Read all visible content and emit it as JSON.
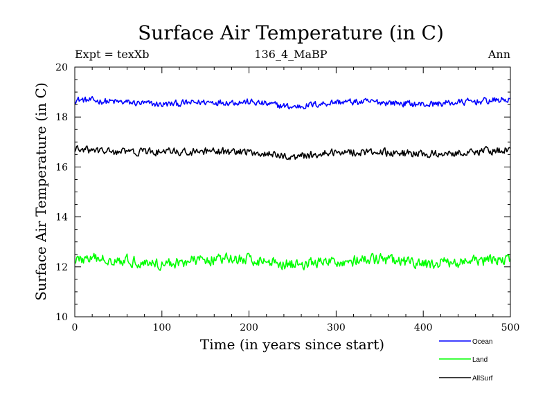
{
  "chart_data": {
    "type": "line",
    "title": "Surface Air Temperature (in C)",
    "subtitle_left": "Expt = texXb",
    "subtitle_center": "136_4_MaBP",
    "subtitle_right": "Ann",
    "xlabel": "Time (in years since start)",
    "ylabel": "Surface Air Temperature (in C)",
    "xlim": [
      0,
      500
    ],
    "ylim": [
      10,
      20
    ],
    "xticks": [
      0,
      100,
      200,
      300,
      400,
      500
    ],
    "yticks": [
      10,
      12,
      14,
      16,
      18,
      20
    ],
    "grid": false,
    "legend_position": "bottom-right",
    "series": [
      {
        "name": "Ocean",
        "color": "#0000ff",
        "mean": 18.6,
        "noise": 0.12,
        "sample_years": [
          0,
          50,
          100,
          150,
          200,
          250,
          300,
          350,
          400,
          450,
          500
        ],
        "values": [
          18.7,
          18.6,
          18.5,
          18.6,
          18.6,
          18.4,
          18.6,
          18.6,
          18.5,
          18.6,
          18.7
        ]
      },
      {
        "name": "Land",
        "color": "#00ff00",
        "mean": 12.2,
        "noise": 0.2,
        "sample_years": [
          0,
          50,
          100,
          150,
          200,
          250,
          300,
          350,
          400,
          450,
          500
        ],
        "values": [
          12.3,
          12.3,
          12.1,
          12.3,
          12.3,
          12.1,
          12.2,
          12.3,
          12.1,
          12.2,
          12.3
        ]
      },
      {
        "name": "AllSurf",
        "color": "#000000",
        "mean": 16.6,
        "noise": 0.14,
        "sample_years": [
          0,
          50,
          100,
          150,
          200,
          250,
          300,
          350,
          400,
          450,
          500
        ],
        "values": [
          16.7,
          16.6,
          16.6,
          16.6,
          16.6,
          16.4,
          16.6,
          16.6,
          16.5,
          16.6,
          16.7
        ]
      }
    ]
  }
}
